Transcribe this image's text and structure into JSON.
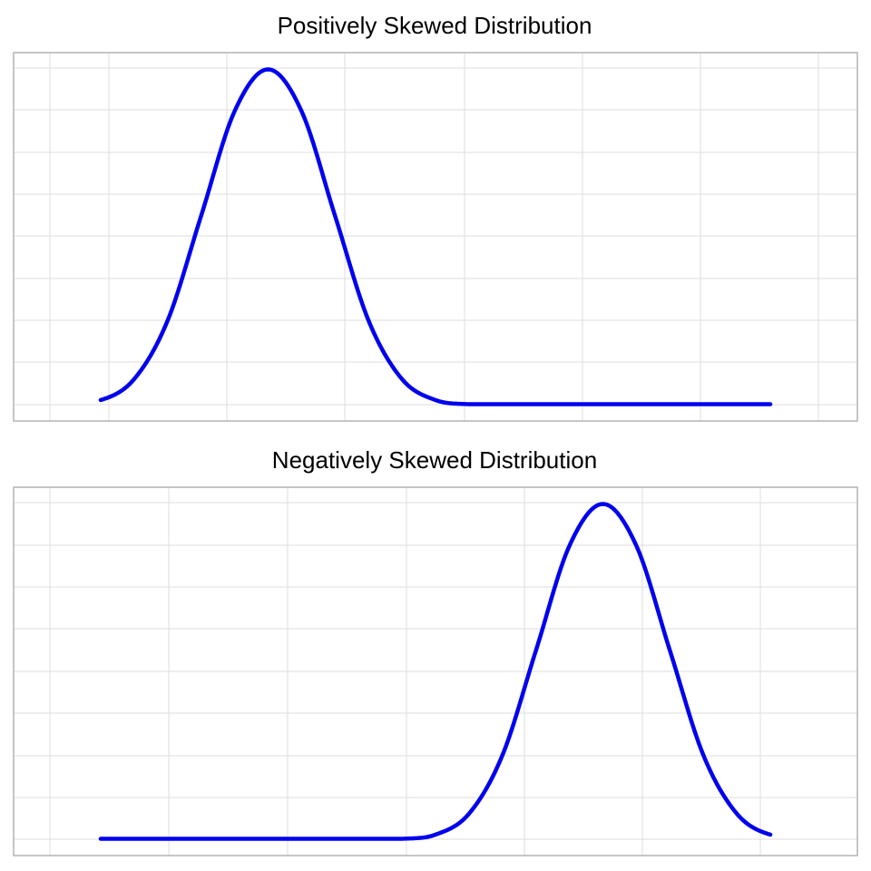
{
  "chart_data": [
    {
      "type": "line",
      "title": "Positively Skewed Distribution",
      "xlabel": "",
      "ylabel": "",
      "x_tick_labels": [],
      "y_tick_labels": [],
      "grid": true,
      "legend": "none",
      "line_color": "#0000ee",
      "xlim": [
        -0.26,
        2.26
      ],
      "ylim": [
        -0.04,
        0.84
      ],
      "x": [
        0.0,
        0.1,
        0.2,
        0.3,
        0.4,
        0.5,
        0.6,
        0.7,
        0.8,
        0.9,
        1.0,
        1.1,
        1.2,
        1.3,
        1.4,
        1.5,
        1.6,
        1.7,
        1.8,
        1.9,
        2.0
      ],
      "values": [
        0.01,
        0.06,
        0.2,
        0.45,
        0.7,
        0.8,
        0.7,
        0.45,
        0.2,
        0.06,
        0.01,
        0.0,
        0.0,
        0.0,
        0.0,
        0.0,
        0.0,
        0.0,
        0.0,
        0.0,
        0.0
      ]
    },
    {
      "type": "line",
      "title": "Negatively Skewed Distribution",
      "xlabel": "",
      "ylabel": "",
      "x_tick_labels": [],
      "y_tick_labels": [],
      "grid": true,
      "legend": "none",
      "line_color": "#0000ee",
      "xlim": [
        -0.26,
        2.26
      ],
      "ylim": [
        -0.04,
        0.84
      ],
      "x": [
        0.0,
        0.1,
        0.2,
        0.3,
        0.4,
        0.5,
        0.6,
        0.7,
        0.8,
        0.9,
        1.0,
        1.1,
        1.2,
        1.3,
        1.4,
        1.5,
        1.6,
        1.7,
        1.8,
        1.9,
        2.0
      ],
      "values": [
        0.0,
        0.0,
        0.0,
        0.0,
        0.0,
        0.0,
        0.0,
        0.0,
        0.0,
        0.0,
        0.01,
        0.06,
        0.2,
        0.45,
        0.7,
        0.8,
        0.7,
        0.45,
        0.2,
        0.06,
        0.01
      ]
    }
  ]
}
